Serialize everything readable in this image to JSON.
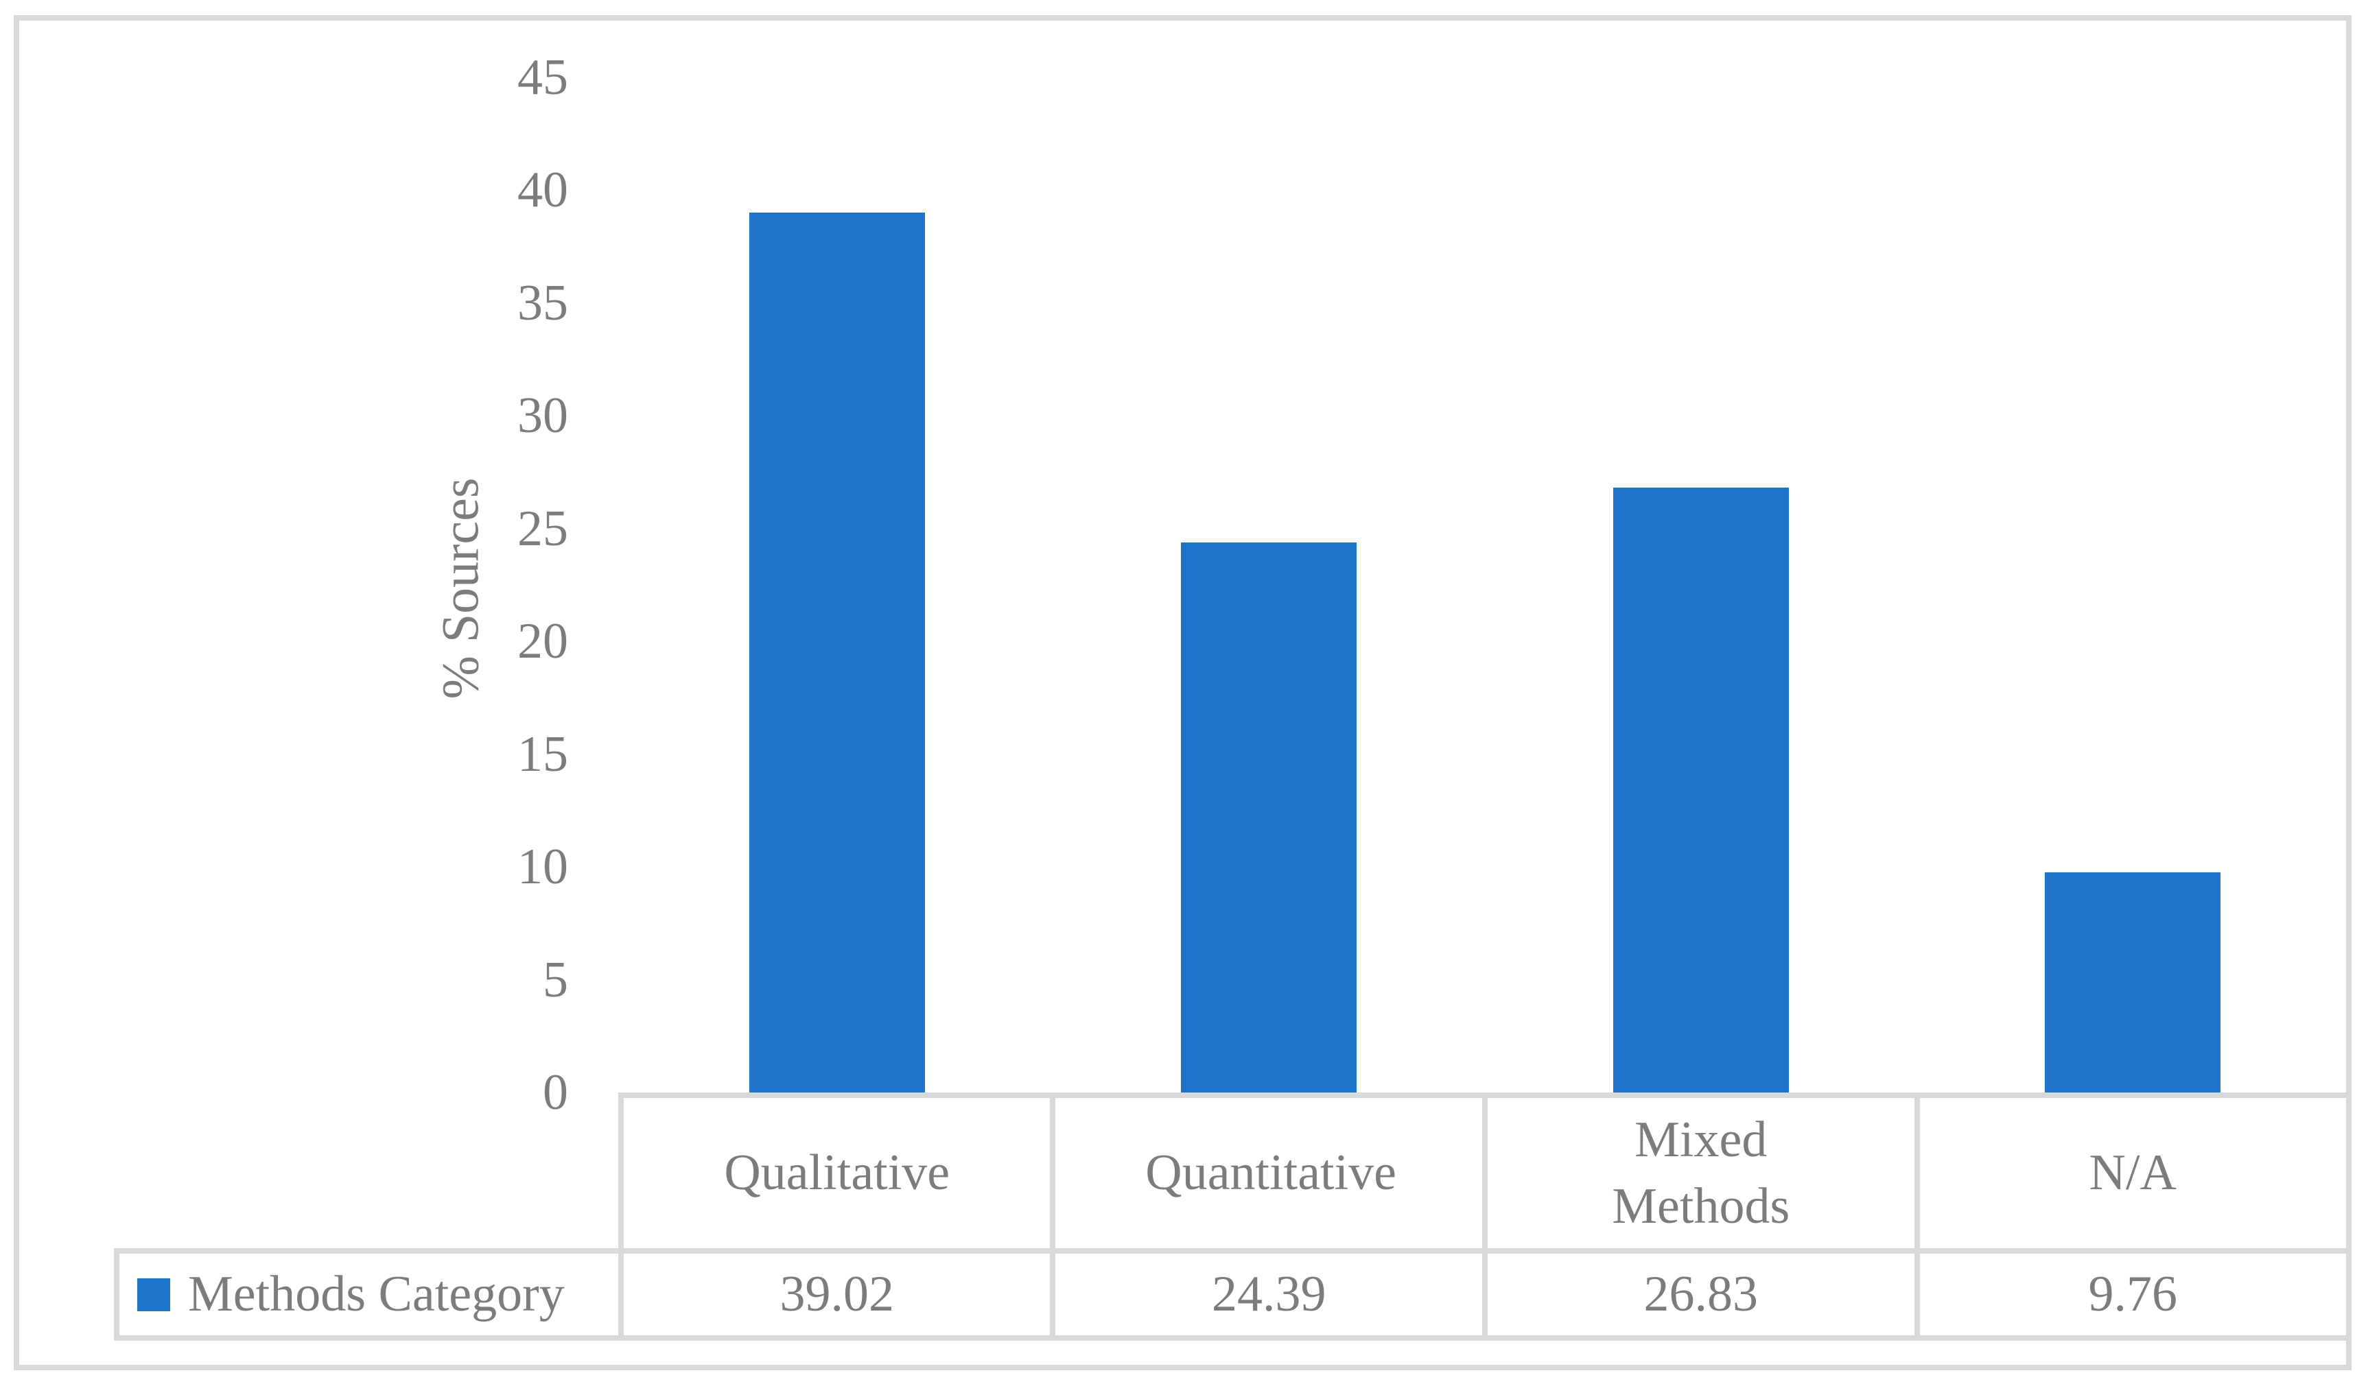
{
  "chart_data": {
    "type": "bar",
    "title": "",
    "categories": [
      "Qualitative",
      "Quantitative",
      "Mixed Methods",
      "N/A"
    ],
    "series": [
      {
        "name": "Methods Category",
        "values": [
          39.02,
          24.39,
          26.83,
          9.76
        ]
      }
    ],
    "value_labels": [
      "39.02",
      "24.39",
      "26.83",
      "9.76"
    ],
    "xlabel": "",
    "ylabel": "% Sources",
    "ylim": [
      0,
      45
    ],
    "yticks": [
      0,
      5,
      10,
      15,
      20,
      25,
      30,
      35,
      40,
      45
    ],
    "grid": false,
    "legend_position": "bottom table row, left cell",
    "bar_color": "#1B74C8",
    "text_color": "#7C7C7C",
    "line_color": "#D9D9D9"
  },
  "legend": {
    "label": "Methods Category"
  }
}
